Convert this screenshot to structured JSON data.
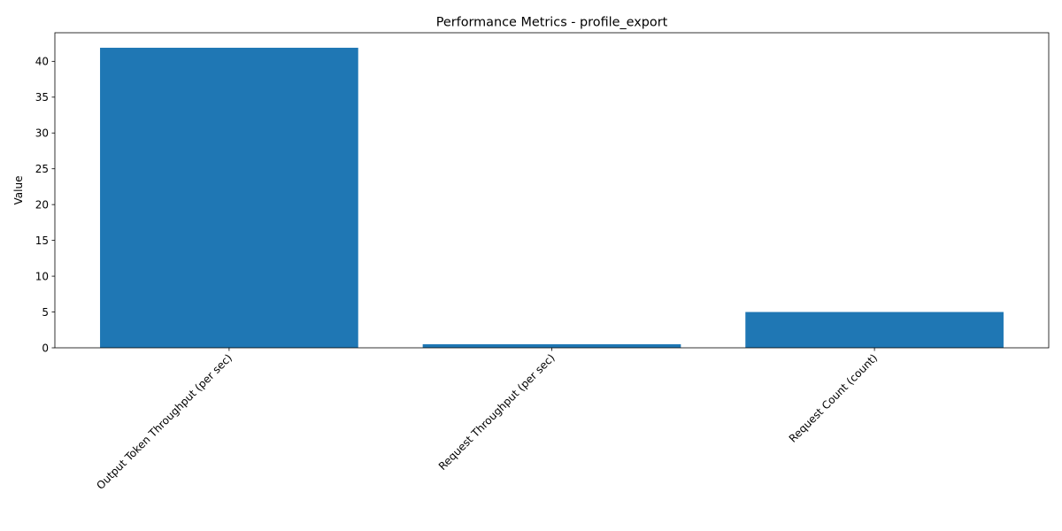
{
  "chart_data": {
    "type": "bar",
    "title": "Performance Metrics - profile_export",
    "xlabel": "",
    "ylabel": "Value",
    "categories": [
      "Output Token Throughput (per sec)",
      "Request Throughput (per sec)",
      "Request Count (count)"
    ],
    "values": [
      41.9,
      0.5,
      5.0
    ],
    "ylim": [
      0,
      43.995
    ],
    "yticks": [
      0,
      5,
      10,
      15,
      20,
      25,
      30,
      35,
      40
    ],
    "grid": false,
    "legend": "none",
    "bar_color": "#1f77b4"
  }
}
